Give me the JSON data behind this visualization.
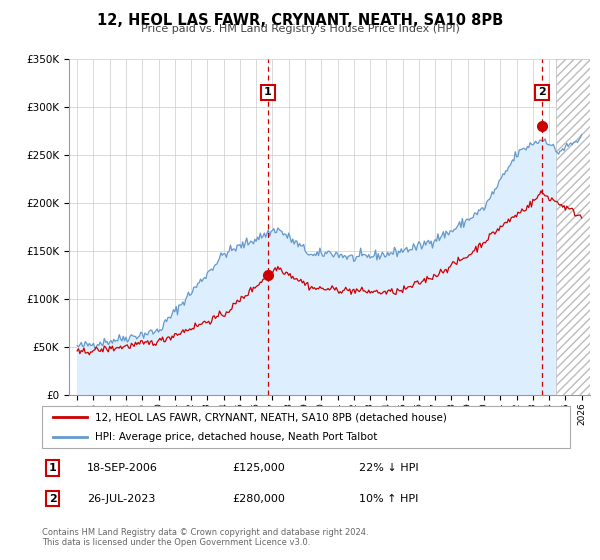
{
  "title": "12, HEOL LAS FAWR, CRYNANT, NEATH, SA10 8PB",
  "subtitle": "Price paid vs. HM Land Registry's House Price Index (HPI)",
  "ylim": [
    0,
    350000
  ],
  "yticks": [
    0,
    50000,
    100000,
    150000,
    200000,
    250000,
    300000,
    350000
  ],
  "ytick_labels": [
    "£0",
    "£50K",
    "£100K",
    "£150K",
    "£200K",
    "£250K",
    "£300K",
    "£350K"
  ],
  "xticks": [
    1995,
    1996,
    1997,
    1998,
    1999,
    2000,
    2001,
    2002,
    2003,
    2004,
    2005,
    2006,
    2007,
    2008,
    2009,
    2010,
    2011,
    2012,
    2013,
    2014,
    2015,
    2016,
    2017,
    2018,
    2019,
    2020,
    2021,
    2022,
    2023,
    2024,
    2025,
    2026
  ],
  "sale1_x": 2006.72,
  "sale1_y": 125000,
  "sale2_x": 2023.57,
  "sale2_y": 280000,
  "legend_line1": "12, HEOL LAS FAWR, CRYNANT, NEATH, SA10 8PB (detached house)",
  "legend_line2": "HPI: Average price, detached house, Neath Port Talbot",
  "sale1_date": "18-SEP-2006",
  "sale1_price": "£125,000",
  "sale1_hpi": "22% ↓ HPI",
  "sale2_date": "26-JUL-2023",
  "sale2_price": "£280,000",
  "sale2_hpi": "10% ↑ HPI",
  "footer1": "Contains HM Land Registry data © Crown copyright and database right 2024.",
  "footer2": "This data is licensed under the Open Government Licence v3.0.",
  "red_color": "#cc0000",
  "blue_color": "#6699cc",
  "fill_color": "#ddeeff",
  "hatch_color": "#cccccc"
}
